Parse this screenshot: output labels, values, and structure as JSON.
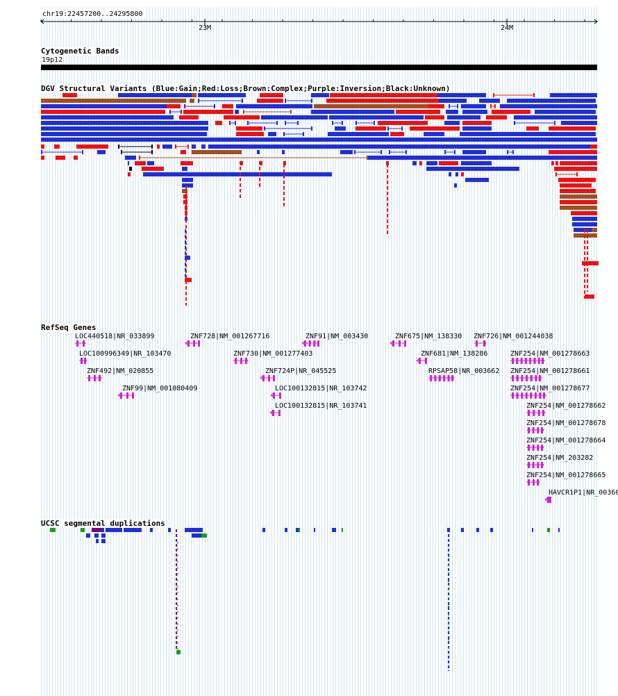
{
  "ruler": {
    "range_label": "chr19:22457200..24295800",
    "ticks": [
      "23M",
      "24M"
    ]
  },
  "tracks": {
    "cytoband": {
      "title": "Cytogenetic Bands",
      "band_label": "19p12"
    },
    "dgv": {
      "title": "DGV Structural Variants (Blue:Gain;Red:Loss;Brown:Complex;Purple:Inversion;Black:Unknown)",
      "colors": {
        "gain": "#1f2fd8",
        "loss": "#f01010",
        "complex": "#a0501c",
        "inversion": "#800080",
        "unknown": "#000000"
      }
    },
    "refseq": {
      "title": "RefSeq Genes",
      "gene_color": "#d020d0",
      "genes": [
        "LOC440518|NR_033899",
        "ZNF728|NM_001267716",
        "ZNF91|NM_003430",
        "ZNF675|NM_138330",
        "ZNF726|NM_001244038",
        "LOC100996349|NR_103470",
        "ZNF730|NM_001277403",
        "ZNF681|NM_138286",
        "ZNF254|NM_001278663",
        "ZNF492|NM_020855",
        "ZNF724P|NR_045525",
        "RPSAP58|NR_003662",
        "ZNF254|NM_001278661",
        "ZNF99|NM_001080409",
        "LOC100132815|NR_103742",
        "ZNF254|NM_001278677",
        "LOC100132815|NR_103741",
        "ZNF254|NM_001278662",
        "ZNF254|NM_001278678",
        "ZNF254|NM_001278664",
        "ZNF254|NM_203282",
        "ZNF254|NM_001278665",
        "HAVCR1P1|NR_00360"
      ]
    },
    "segdup": {
      "title": "UCSC segmental duplications",
      "colors": {
        "blue": "#1f2fd8",
        "green": "#18a018",
        "purple": "#800080"
      }
    }
  }
}
